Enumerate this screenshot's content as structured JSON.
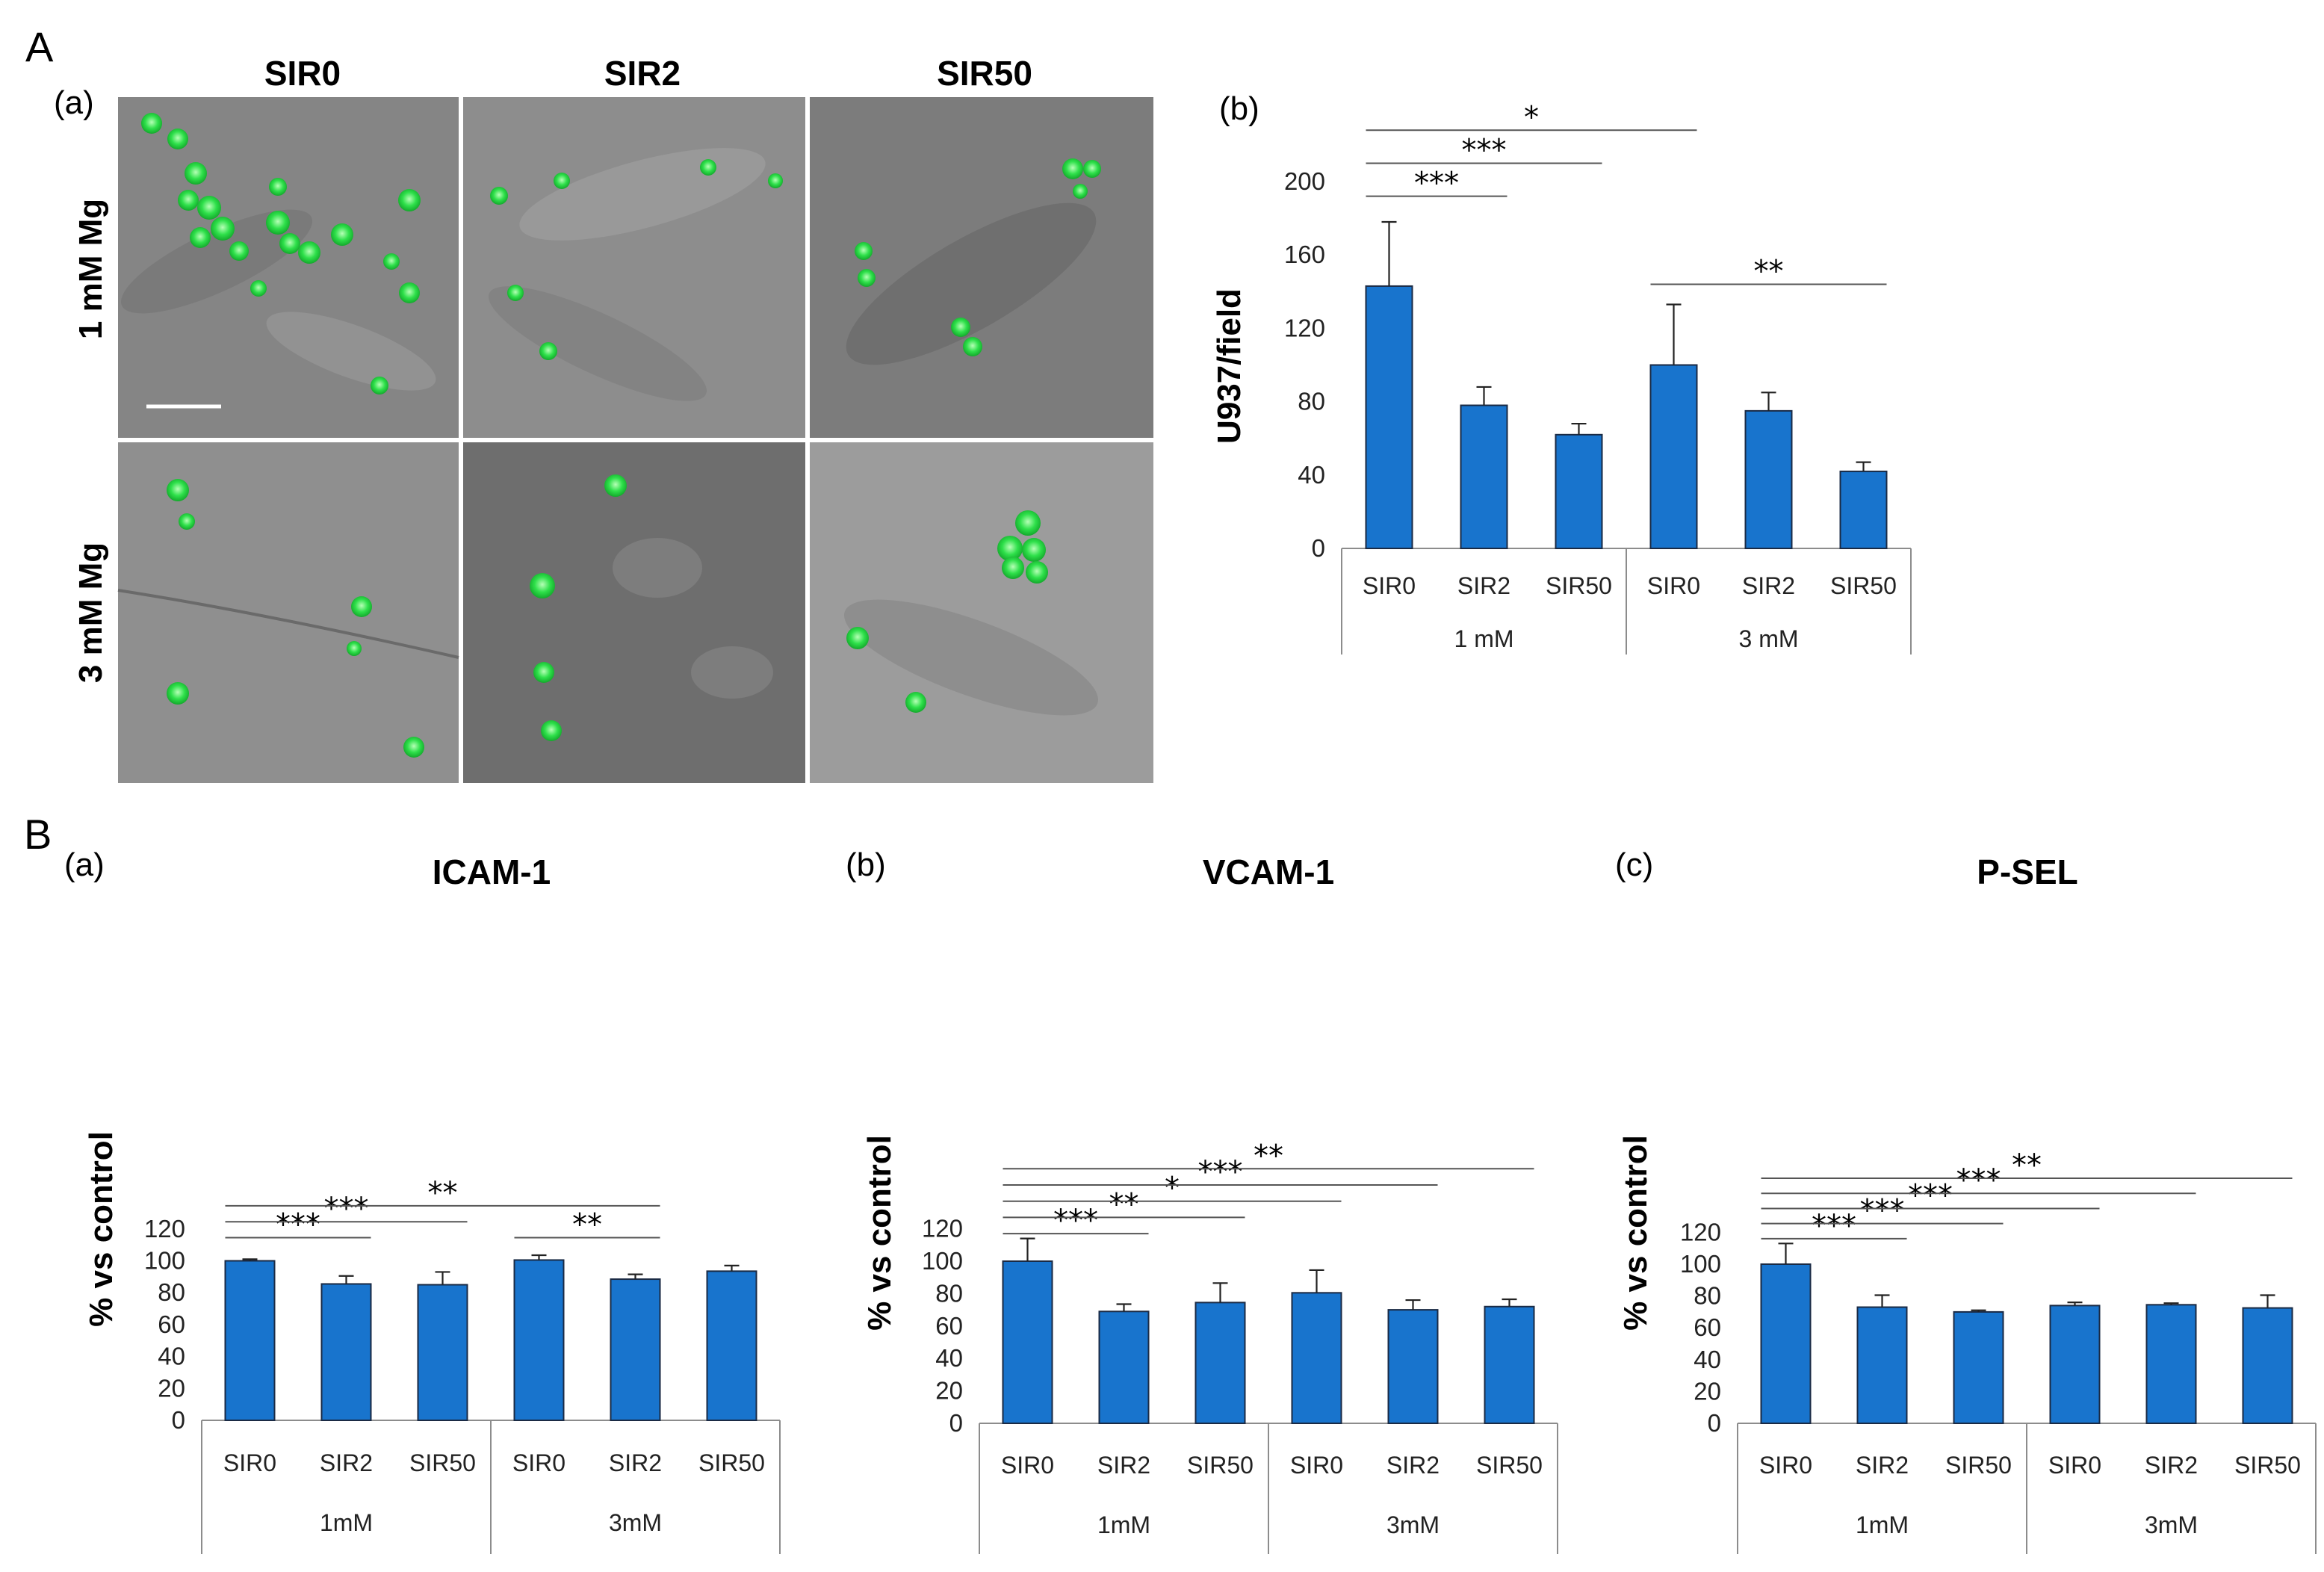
{
  "colors": {
    "bar": "#1874CD",
    "cell": "#2a7f3a"
  },
  "panel_labels": {
    "A": "A",
    "B": "B"
  },
  "micrographs": {
    "label": "(a)",
    "columns": [
      "SIR0",
      "SIR2",
      "SIR50"
    ],
    "rows": [
      "1 mM Mg",
      "3 mM Mg"
    ]
  },
  "chart_data": [
    {
      "id": "Ab",
      "panel_label": "(b)",
      "type": "bar",
      "title": "",
      "ylabel": "U937/field",
      "ylim": [
        0,
        200
      ],
      "yticks": [
        0,
        40,
        80,
        120,
        160,
        200
      ],
      "categories": [
        "SIR0",
        "SIR2",
        "SIR50",
        "SIR0",
        "SIR2",
        "SIR50"
      ],
      "groups": [
        "1 mM",
        "3 mM"
      ],
      "values": [
        143,
        78,
        62,
        100,
        75,
        42
      ],
      "errors": [
        35,
        10,
        6,
        33,
        10,
        5
      ],
      "significance": [
        {
          "from": 0,
          "to": 1,
          "y": 192,
          "label": "***"
        },
        {
          "from": 0,
          "to": 2,
          "y": 210,
          "label": "***"
        },
        {
          "from": 0,
          "to": 3,
          "y": 228,
          "label": "*"
        },
        {
          "from": 3,
          "to": 5,
          "y": 144,
          "label": "**"
        }
      ]
    },
    {
      "id": "Ba",
      "panel_label": "(a)",
      "type": "bar",
      "title": "ICAM-1",
      "ylabel": "% vs control",
      "ylim": [
        0,
        120
      ],
      "yticks": [
        0,
        20,
        40,
        60,
        80,
        100,
        120
      ],
      "categories": [
        "SIR0",
        "SIR2",
        "SIR50",
        "SIR0",
        "SIR2",
        "SIR50"
      ],
      "groups": [
        "1mM",
        "3mM"
      ],
      "values": [
        100,
        85.5,
        85,
        100.5,
        88.5,
        93.5
      ],
      "errors": [
        1,
        5,
        8,
        3,
        3,
        3.5
      ],
      "significance": [
        {
          "from": 0,
          "to": 1,
          "y": 114.5,
          "label": "***"
        },
        {
          "from": 0,
          "to": 2,
          "y": 124.5,
          "label": "***"
        },
        {
          "from": 0,
          "to": 4,
          "y": 134.5,
          "label": "**"
        },
        {
          "from": 3,
          "to": 4,
          "y": 114.5,
          "label": "**"
        }
      ]
    },
    {
      "id": "Bb",
      "panel_label": "(b)",
      "type": "bar",
      "title": "VCAM-1",
      "ylabel": "% vs control",
      "ylim": [
        0,
        120
      ],
      "yticks": [
        0,
        20,
        40,
        60,
        80,
        100,
        120
      ],
      "categories": [
        "SIR0",
        "SIR2",
        "SIR50",
        "SIR0",
        "SIR2",
        "SIR50"
      ],
      "groups": [
        "1mM",
        "3mM"
      ],
      "values": [
        100,
        69,
        74.5,
        80.5,
        70,
        72
      ],
      "errors": [
        14,
        4.5,
        12,
        14,
        6,
        4.5
      ],
      "significance": [
        {
          "from": 0,
          "to": 1,
          "y": 117,
          "label": "***"
        },
        {
          "from": 0,
          "to": 2,
          "y": 127,
          "label": "**"
        },
        {
          "from": 0,
          "to": 3,
          "y": 137,
          "label": "*"
        },
        {
          "from": 0,
          "to": 4,
          "y": 147,
          "label": "***"
        },
        {
          "from": 0,
          "to": 5,
          "y": 157,
          "label": "**"
        }
      ]
    },
    {
      "id": "Bc",
      "panel_label": "(c)",
      "type": "bar",
      "title": "P-SEL",
      "ylabel": "% vs control",
      "ylim": [
        0,
        120
      ],
      "yticks": [
        0,
        20,
        40,
        60,
        80,
        100,
        120
      ],
      "categories": [
        "SIR0",
        "SIR2",
        "SIR50",
        "SIR0",
        "SIR2",
        "SIR50"
      ],
      "groups": [
        "1mM",
        "3mM"
      ],
      "values": [
        100,
        73,
        70,
        74,
        74.5,
        72.5
      ],
      "errors": [
        13,
        7.5,
        1,
        2,
        1,
        8
      ],
      "significance": [
        {
          "from": 0,
          "to": 1,
          "y": 116,
          "label": "***"
        },
        {
          "from": 0,
          "to": 2,
          "y": 125.5,
          "label": "***"
        },
        {
          "from": 0,
          "to": 3,
          "y": 135,
          "label": "***"
        },
        {
          "from": 0,
          "to": 4,
          "y": 144.5,
          "label": "***"
        },
        {
          "from": 0,
          "to": 5,
          "y": 154,
          "label": "**"
        }
      ]
    }
  ]
}
